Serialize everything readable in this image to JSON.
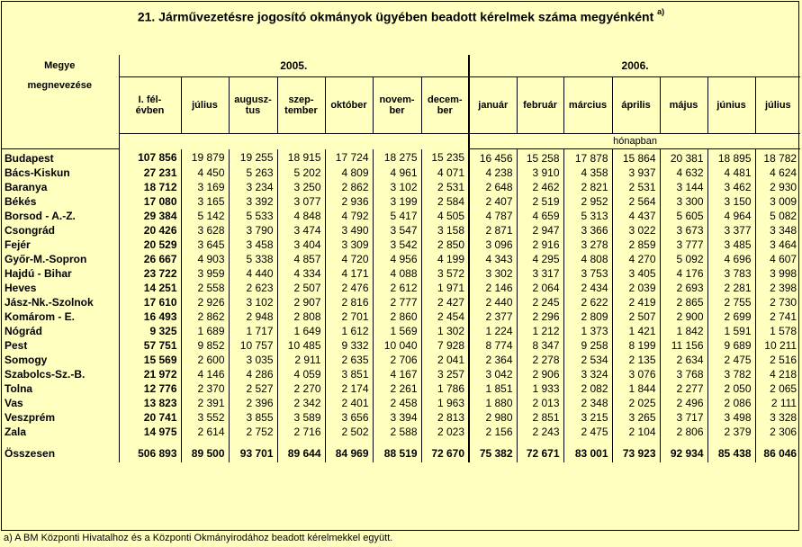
{
  "title": "21. Járművezetésre jogosító okmányok ügyében beadott kérelmek száma megyénként",
  "title_sup": "a)",
  "header": {
    "region_line1": "Megye",
    "region_line2": "megnevezése",
    "year1": "2005.",
    "year2": "2006.",
    "unit": "hónapban",
    "columns": [
      [
        "I. fél-",
        "évben"
      ],
      [
        "július",
        ""
      ],
      [
        "augusz-",
        "tus"
      ],
      [
        "szep-",
        "tember"
      ],
      [
        "október",
        ""
      ],
      [
        "novem-",
        "ber"
      ],
      [
        "decem-",
        "ber"
      ],
      [
        "január",
        ""
      ],
      [
        "február",
        ""
      ],
      [
        "március",
        ""
      ],
      [
        "április",
        ""
      ],
      [
        "május",
        ""
      ],
      [
        "június",
        ""
      ],
      [
        "július",
        ""
      ]
    ]
  },
  "rows": [
    {
      "name": "Budapest",
      "values": [
        "107 856",
        "19 879",
        "19 255",
        "18 915",
        "17 724",
        "18 275",
        "15 235",
        "16 456",
        "15 258",
        "17 878",
        "15 864",
        "20 381",
        "18 895",
        "18 782"
      ]
    },
    {
      "name": "Bács-Kiskun",
      "values": [
        "27 231",
        "4 450",
        "5 263",
        "5 202",
        "4 809",
        "4 961",
        "4 071",
        "4 238",
        "3 910",
        "4 358",
        "3 937",
        "4 632",
        "4 481",
        "4 624"
      ]
    },
    {
      "name": "Baranya",
      "values": [
        "18 712",
        "3 169",
        "3 234",
        "3 250",
        "2 862",
        "3 102",
        "2 531",
        "2 648",
        "2 462",
        "2 821",
        "2 531",
        "3 144",
        "3 462",
        "2 930"
      ]
    },
    {
      "name": "Békés",
      "values": [
        "17 080",
        "3 165",
        "3 392",
        "3 077",
        "2 936",
        "3 199",
        "2 584",
        "2 407",
        "2 519",
        "2 952",
        "2 564",
        "3 300",
        "3 150",
        "3 009"
      ]
    },
    {
      "name": "Borsod - A.-Z.",
      "values": [
        "29 384",
        "5 142",
        "5 533",
        "4 848",
        "4 792",
        "5 417",
        "4 505",
        "4 787",
        "4 659",
        "5 313",
        "4 437",
        "5 605",
        "4 964",
        "5 082"
      ]
    },
    {
      "name": "Csongrád",
      "values": [
        "20 426",
        "3 628",
        "3 790",
        "3 474",
        "3 490",
        "3 547",
        "3 158",
        "2 871",
        "2 947",
        "3 366",
        "3 022",
        "3 673",
        "3 377",
        "3 348"
      ]
    },
    {
      "name": "Fejér",
      "values": [
        "20 529",
        "3 645",
        "3 458",
        "3 404",
        "3 309",
        "3 542",
        "2 850",
        "3 096",
        "2 916",
        "3 278",
        "2 859",
        "3 777",
        "3 485",
        "3 464"
      ]
    },
    {
      "name": "Győr-M.-Sopron",
      "values": [
        "26 667",
        "4 903",
        "5 338",
        "4 857",
        "4 720",
        "4 956",
        "4 199",
        "4 343",
        "4 295",
        "4 808",
        "4 270",
        "5 092",
        "4 696",
        "4 607"
      ]
    },
    {
      "name": "Hajdú - Bihar",
      "values": [
        "23 722",
        "3 959",
        "4 440",
        "4 334",
        "4 171",
        "4 088",
        "3 572",
        "3 302",
        "3 317",
        "3 753",
        "3 405",
        "4 176",
        "3 783",
        "3 998"
      ]
    },
    {
      "name": "Heves",
      "values": [
        "14 251",
        "2 558",
        "2 623",
        "2 507",
        "2 476",
        "2 612",
        "1 971",
        "2 146",
        "2 064",
        "2 434",
        "2 039",
        "2 693",
        "2 281",
        "2 398"
      ]
    },
    {
      "name": "Jász-Nk.-Szolnok",
      "values": [
        "17 610",
        "2 926",
        "3 102",
        "2 907",
        "2 816",
        "2 777",
        "2 427",
        "2 440",
        "2 245",
        "2 622",
        "2 419",
        "2 865",
        "2 755",
        "2 730"
      ]
    },
    {
      "name": "Komárom - E.",
      "values": [
        "16 493",
        "2 862",
        "2 948",
        "2 808",
        "2 701",
        "2 860",
        "2 454",
        "2 377",
        "2 296",
        "2 809",
        "2 507",
        "2 900",
        "2 699",
        "2 741"
      ]
    },
    {
      "name": "Nógrád",
      "values": [
        "9 325",
        "1 689",
        "1 717",
        "1 649",
        "1 612",
        "1 569",
        "1 302",
        "1 224",
        "1 212",
        "1 373",
        "1 421",
        "1 842",
        "1 591",
        "1 578"
      ]
    },
    {
      "name": "Pest",
      "values": [
        "57 751",
        "9 852",
        "10 757",
        "10 485",
        "9 332",
        "10 040",
        "7 928",
        "8 774",
        "8 347",
        "9 258",
        "8 199",
        "11 156",
        "9 689",
        "10 211"
      ]
    },
    {
      "name": "Somogy",
      "values": [
        "15 569",
        "2 600",
        "3 035",
        "2 911",
        "2 635",
        "2 706",
        "2 041",
        "2 364",
        "2 278",
        "2 534",
        "2 135",
        "2 634",
        "2 475",
        "2 516"
      ]
    },
    {
      "name": "Szabolcs-Sz.-B.",
      "values": [
        "21 972",
        "4 146",
        "4 286",
        "4 059",
        "3 851",
        "4 167",
        "3 257",
        "3 042",
        "2 906",
        "3 324",
        "3 076",
        "3 768",
        "3 782",
        "4 218"
      ]
    },
    {
      "name": "Tolna",
      "values": [
        "12 776",
        "2 370",
        "2 527",
        "2 270",
        "2 174",
        "2 261",
        "1 786",
        "1 851",
        "1 933",
        "2 082",
        "1 844",
        "2 277",
        "2 050",
        "2 065"
      ]
    },
    {
      "name": "Vas",
      "values": [
        "13 823",
        "2 391",
        "2 396",
        "2 342",
        "2 401",
        "2 458",
        "1 963",
        "1 880",
        "2 013",
        "2 348",
        "2 025",
        "2 496",
        "2 086",
        "2 111"
      ]
    },
    {
      "name": "Veszprém",
      "values": [
        "20 741",
        "3 552",
        "3 855",
        "3 589",
        "3 656",
        "3 394",
        "2 813",
        "2 980",
        "2 851",
        "3 215",
        "3 265",
        "3 717",
        "3 498",
        "3 328"
      ]
    },
    {
      "name": "Zala",
      "values": [
        "14 975",
        "2 614",
        "2 752",
        "2 716",
        "2 502",
        "2 588",
        "2 023",
        "2 156",
        "2 243",
        "2 475",
        "2 104",
        "2 806",
        "2 379",
        "2 306"
      ]
    }
  ],
  "total": {
    "name": "Összesen",
    "values": [
      "506 893",
      "89 500",
      "93 701",
      "89 644",
      "84 969",
      "88 519",
      "72 670",
      "75 382",
      "72 671",
      "83 001",
      "73 923",
      "92 934",
      "85 438",
      "86 046"
    ]
  },
  "footnote": "a) A BM Központi Hivatalhoz és a Központi Okmányirodához beadott kérelmekkel együtt."
}
